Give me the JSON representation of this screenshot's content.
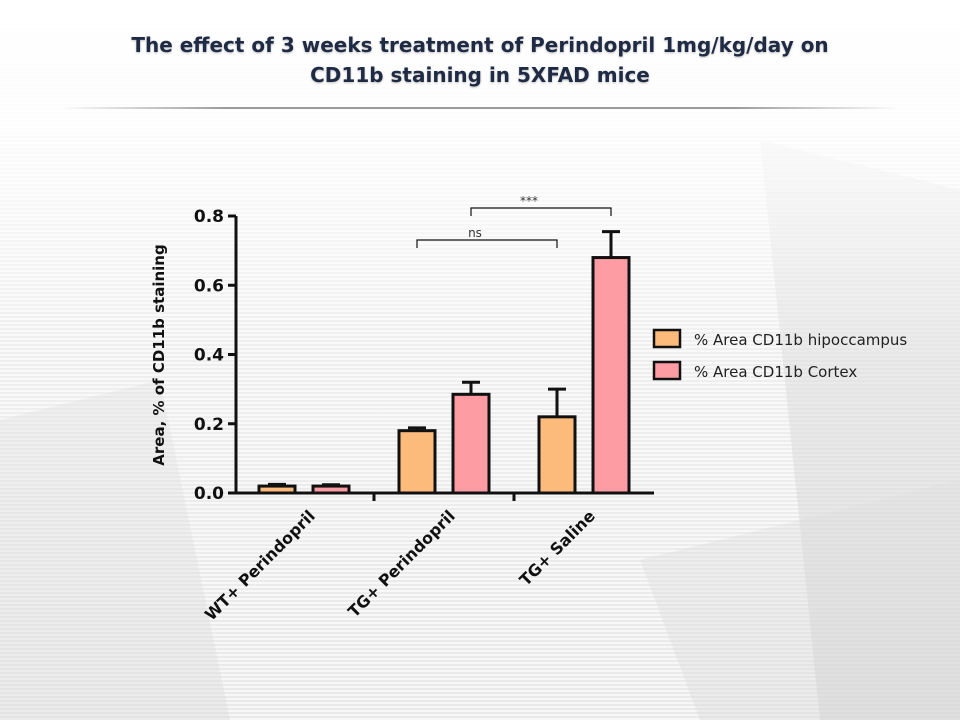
{
  "slide": {
    "title_line1": "The effect of 3 weeks treatment of Perindopril 1mg/kg/day on",
    "title_line2": "CD11b staining in 5XFAD mice"
  },
  "colors": {
    "hippocampus": "#fcbb7b",
    "cortex": "#fd9ca2",
    "axis": "#111111",
    "title": "#1f2a44"
  },
  "chart_data": {
    "type": "bar",
    "ylabel": "Area, % of CD11b staining",
    "xlabel": "",
    "ylim": [
      0,
      0.8
    ],
    "yticks": [
      "0.0",
      "0.2",
      "0.4",
      "0.6",
      "0.8"
    ],
    "categories": [
      "WT+ Perindopril",
      "TG+ Perindopril",
      "TG+ Saline"
    ],
    "series": [
      {
        "name": "% Area CD11b hipoccampus",
        "values": [
          0.02,
          0.18,
          0.22
        ],
        "errors": [
          0.005,
          0.008,
          0.08
        ]
      },
      {
        "name": "% Area CD11b Cortex",
        "values": [
          0.02,
          0.285,
          0.68
        ],
        "errors": [
          0.004,
          0.035,
          0.075
        ]
      }
    ],
    "legend_position": "right",
    "grid": false,
    "annotations": [
      {
        "label": "ns",
        "from": "TG+ Perindopril / % Area CD11b hipoccampus",
        "to": "TG+ Saline / % Area CD11b hipoccampus"
      },
      {
        "label": "***",
        "from": "TG+ Perindopril / % Area CD11b Cortex",
        "to": "TG+ Saline / % Area CD11b Cortex"
      }
    ]
  }
}
